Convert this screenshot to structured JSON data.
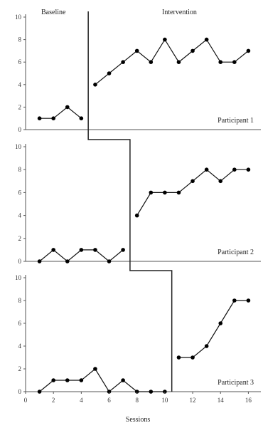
{
  "chart_data": {
    "type": "line",
    "phase_labels": [
      "Baseline",
      "Intervention"
    ],
    "xlabel": "Sessions",
    "x_ticks": [
      "0",
      "2",
      "4",
      "6",
      "8",
      "10",
      "12",
      "14",
      "16"
    ],
    "xlim": [
      0,
      17
    ],
    "panels": [
      {
        "label": "Participant 1",
        "ylim": [
          0,
          10
        ],
        "y_ticks": [
          "0",
          "2",
          "4",
          "6",
          "8",
          "10"
        ],
        "phase_change_after": 4.5,
        "baseline": {
          "x": [
            1,
            2,
            3,
            4
          ],
          "y": [
            1,
            1,
            2,
            1
          ]
        },
        "intervention": {
          "x": [
            5,
            6,
            7,
            8,
            9,
            10,
            11,
            12,
            13,
            14,
            15,
            16
          ],
          "y": [
            4,
            5,
            6,
            7,
            6,
            8,
            6,
            7,
            8,
            6,
            6,
            7
          ]
        }
      },
      {
        "label": "Participant 2",
        "ylim": [
          0,
          10
        ],
        "y_ticks": [
          "0",
          "2",
          "4",
          "6",
          "8",
          "10"
        ],
        "phase_change_after": 7.5,
        "baseline": {
          "x": [
            1,
            2,
            3,
            4,
            5,
            6,
            7
          ],
          "y": [
            0,
            1,
            0,
            1,
            1,
            0,
            1
          ]
        },
        "intervention": {
          "x": [
            8,
            9,
            10,
            11,
            12,
            13,
            14,
            15,
            16
          ],
          "y": [
            4,
            6,
            6,
            6,
            7,
            8,
            7,
            8,
            8
          ]
        }
      },
      {
        "label": "Participant 3",
        "ylim": [
          0,
          10
        ],
        "y_ticks": [
          "0",
          "2",
          "4",
          "6",
          "8",
          "10"
        ],
        "phase_change_after": 10.5,
        "baseline": {
          "x": [
            1,
            2,
            3,
            4,
            5,
            6,
            7,
            8,
            9,
            10
          ],
          "y": [
            0,
            1,
            1,
            1,
            2,
            0,
            1,
            0,
            0,
            0
          ]
        },
        "intervention": {
          "x": [
            11,
            12,
            13,
            14,
            15,
            16
          ],
          "y": [
            3,
            3,
            4,
            6,
            8,
            8
          ]
        }
      }
    ]
  }
}
